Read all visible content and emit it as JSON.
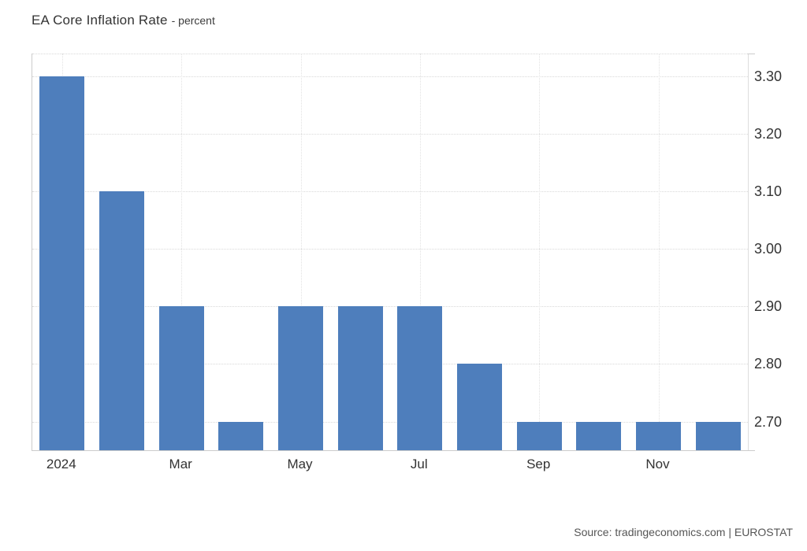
{
  "header": {
    "title": "EA Core Inflation Rate",
    "subtitle": "- percent"
  },
  "footer": {
    "source": "Source: tradingeconomics.com | EUROSTAT"
  },
  "chart_data": {
    "type": "bar",
    "title": "EA Core Inflation Rate",
    "unit": "percent",
    "categories": [
      "2024",
      "",
      "Mar",
      "",
      "May",
      "",
      "Jul",
      "",
      "Sep",
      "",
      "Nov",
      ""
    ],
    "values": [
      3.3,
      3.1,
      2.9,
      2.7,
      2.9,
      2.9,
      2.9,
      2.8,
      2.7,
      2.7,
      2.7,
      2.7
    ],
    "y_ticks": [
      3.3,
      3.2,
      3.1,
      3.0,
      2.9,
      2.8,
      2.7
    ],
    "y_tick_labels": [
      "3.30",
      "3.20",
      "3.10",
      "3.00",
      "2.90",
      "2.80",
      "2.70"
    ],
    "ylim": [
      2.65,
      3.34
    ],
    "xlabel": "",
    "ylabel": "",
    "grid": true,
    "legend_position": "none",
    "y_axis_side": "right",
    "bar_color": "#4E7EBC"
  },
  "colors": {
    "bar": "#4E7EBC",
    "grid": "#d9d9d9",
    "axis": "#cccccc",
    "text": "#333333",
    "source_text": "#555555"
  }
}
